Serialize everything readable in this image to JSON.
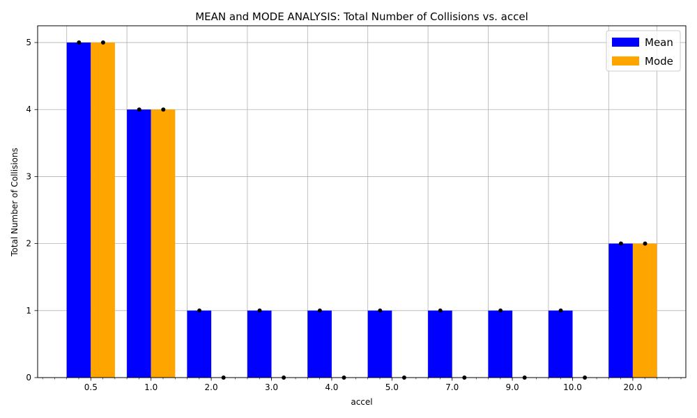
{
  "chart_data": {
    "type": "bar",
    "title": "MEAN and MODE ANALYSIS: Total Number of Collisions vs. accel",
    "xlabel": "accel",
    "ylabel": "Total Number of Collisions",
    "categories": [
      "0.5",
      "1.0",
      "2.0",
      "3.0",
      "4.0",
      "5.0",
      "7.0",
      "9.0",
      "10.0",
      "20.0"
    ],
    "ylim": [
      0,
      5.25
    ],
    "yticks": [
      0,
      1,
      2,
      3,
      4,
      5
    ],
    "grid": true,
    "legend_position": "top-right",
    "series": [
      {
        "name": "Mean",
        "color": "#0000ff",
        "values": [
          5,
          4,
          1,
          1,
          1,
          1,
          1,
          1,
          1,
          2
        ]
      },
      {
        "name": "Mode",
        "color": "#ffa500",
        "values": [
          5,
          4,
          0,
          0,
          0,
          0,
          0,
          0,
          0,
          2
        ]
      }
    ],
    "marker_color": "#000000"
  }
}
